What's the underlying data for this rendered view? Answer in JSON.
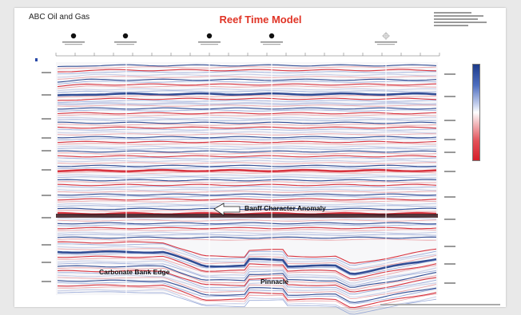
{
  "header": {
    "company": "ABC Oil and Gas",
    "title": "Reef Time Model"
  },
  "annotations": {
    "anomaly": "Banff Character Anomaly",
    "bank_edge": "Carbonate Bank Edge",
    "pinnacle": "Pinnacle"
  },
  "wells": [
    {
      "type": "filled"
    },
    {
      "type": "filled"
    },
    {
      "type": "filled"
    },
    {
      "type": "filled"
    },
    {
      "type": "open"
    }
  ],
  "colors": {
    "title": "#e03426",
    "positive": "#1b3a8a",
    "negative": "#d51e2a"
  }
}
